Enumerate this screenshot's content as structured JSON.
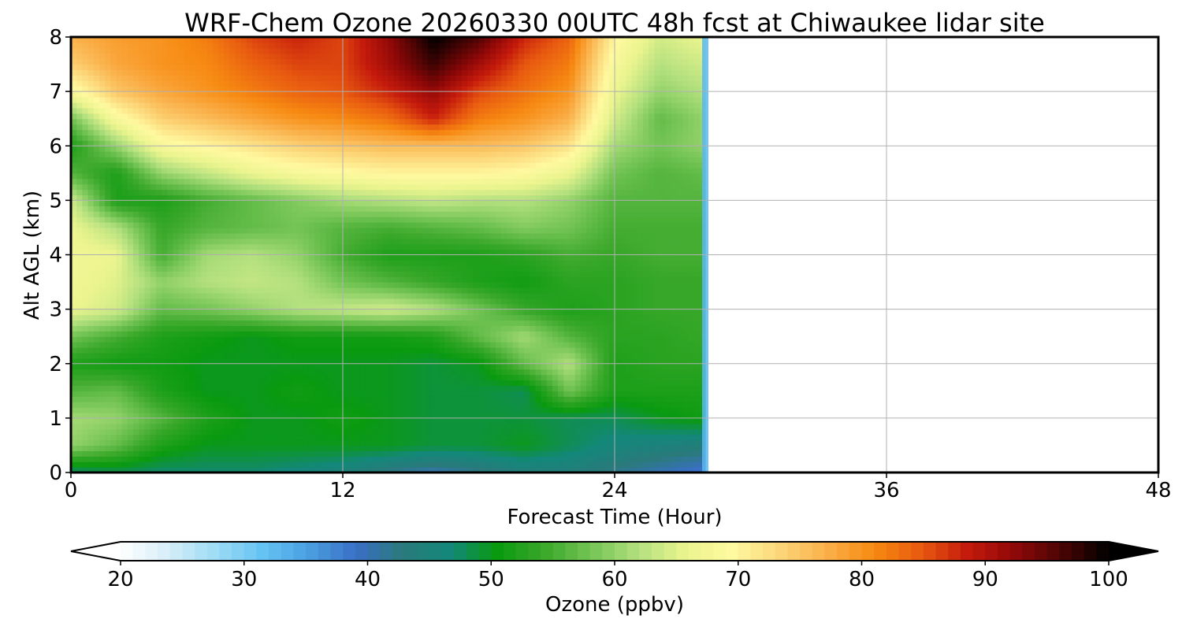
{
  "chart_data": {
    "type": "heatmap",
    "title": "WRF-Chem Ozone  20260330 00UTC 48h fcst at Chiwaukee lidar site",
    "xlabel": "Forecast Time (Hour)",
    "ylabel": "Alt AGL (km)",
    "x_ticks": [
      "0",
      "12",
      "24",
      "36",
      "48"
    ],
    "y_ticks": [
      "0",
      "1",
      "2",
      "3",
      "4",
      "5",
      "6",
      "7",
      "8"
    ],
    "xlim": [
      0,
      48
    ],
    "ylim": [
      0,
      8
    ],
    "grid": true,
    "data_extent_hours": [
      0,
      28
    ],
    "x": [
      0,
      2,
      4,
      6,
      8,
      10,
      12,
      14,
      16,
      18,
      20,
      22,
      24,
      26,
      28
    ],
    "y": [
      0,
      0.5,
      1,
      1.5,
      2,
      2.5,
      3,
      3.5,
      4,
      4.5,
      5,
      5.5,
      6,
      6.5,
      7,
      7.5,
      8
    ],
    "z": [
      [
        47,
        48,
        47,
        47,
        47,
        46,
        45,
        42,
        40,
        42,
        44,
        44,
        42,
        40,
        38
      ],
      [
        60,
        57,
        52,
        50,
        50,
        50,
        50,
        50,
        49,
        49,
        50,
        48,
        46,
        45,
        44
      ],
      [
        61,
        60,
        56,
        52,
        50,
        50,
        51,
        50,
        49,
        49,
        49,
        48,
        48,
        50,
        51
      ],
      [
        56,
        57,
        52,
        50,
        50,
        51,
        50,
        50,
        49,
        49,
        48,
        58,
        52,
        52,
        52
      ],
      [
        52,
        51,
        51,
        50,
        50,
        50,
        50,
        50,
        49,
        50,
        57,
        62,
        52,
        53,
        53
      ],
      [
        58,
        55,
        52,
        51,
        50,
        51,
        51,
        51,
        52,
        57,
        61,
        56,
        53,
        53,
        54
      ],
      [
        66,
        64,
        57,
        58,
        60,
        62,
        63,
        64,
        62,
        58,
        54,
        52,
        53,
        54,
        54
      ],
      [
        67,
        65,
        60,
        62,
        63,
        62,
        58,
        56,
        54,
        52,
        51,
        53,
        53,
        54,
        54
      ],
      [
        67,
        66,
        55,
        61,
        62,
        60,
        55,
        52,
        52,
        52,
        53,
        55,
        54,
        55,
        55
      ],
      [
        66,
        62,
        54,
        56,
        57,
        58,
        56,
        55,
        56,
        57,
        59,
        58,
        55,
        55,
        55
      ],
      [
        64,
        52,
        52,
        55,
        57,
        59,
        61,
        62,
        63,
        62,
        62,
        60,
        56,
        56,
        56
      ],
      [
        56,
        52,
        60,
        63,
        66,
        68,
        69,
        70,
        70,
        70,
        69,
        66,
        58,
        56,
        57
      ],
      [
        52,
        60,
        68,
        70,
        72,
        74,
        75,
        76,
        76,
        76,
        75,
        72,
        61,
        58,
        60
      ],
      [
        58,
        68,
        74,
        76,
        78,
        80,
        81,
        83,
        88,
        82,
        80,
        77,
        64,
        57,
        60
      ],
      [
        68,
        75,
        78,
        80,
        82,
        84,
        85,
        88,
        92,
        86,
        83,
        80,
        66,
        60,
        62
      ],
      [
        74,
        78,
        80,
        81,
        84,
        86,
        86,
        91,
        97,
        91,
        85,
        82,
        68,
        62,
        64
      ],
      [
        77,
        79,
        80,
        82,
        86,
        88,
        86,
        92,
        100,
        96,
        88,
        84,
        70,
        64,
        66
      ]
    ],
    "colorbar": {
      "label": "Ozone  (ppbv)",
      "min": 20,
      "max": 100,
      "ticks": [
        "20",
        "30",
        "40",
        "50",
        "60",
        "70",
        "80",
        "90",
        "100"
      ],
      "extend": "both",
      "colors": [
        "#ffffff",
        "#d7eef8",
        "#9fdcf5",
        "#66c4f3",
        "#4a9fe0",
        "#3a6fc6",
        "#2a7a7a",
        "#13877a",
        "#0a9a10",
        "#3aa82a",
        "#74c455",
        "#b3e07e",
        "#eaf48e",
        "#fff9a0",
        "#fcd77a",
        "#fab04a",
        "#f78a12",
        "#e85a10",
        "#c41a0c",
        "#8f0808",
        "#4a0404",
        "#000000"
      ]
    }
  }
}
